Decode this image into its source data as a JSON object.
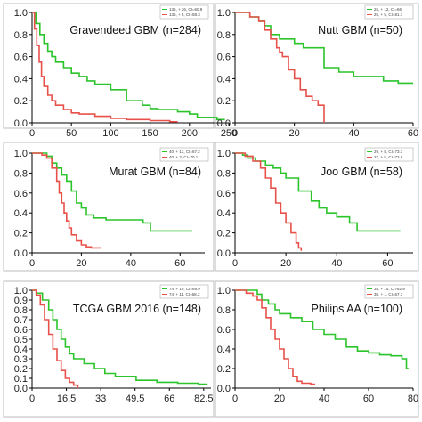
{
  "colors": {
    "green": "#2bc42b",
    "red": "#e8504a",
    "axis": "#000000",
    "frame": "#bbbbbb"
  },
  "chart_data": [
    {
      "type": "line",
      "title": "Gravendeed GBM (n=284)",
      "x_ticks": [
        "0",
        "50",
        "100",
        "150",
        "200",
        "250"
      ],
      "y_ticks": [
        "0.0",
        "0.2",
        "0.4",
        "0.6",
        "0.8",
        "1.0"
      ],
      "xlim": [
        0,
        250
      ],
      "ylim": [
        0,
        1
      ],
      "legend": [
        "135, + 26, CI=60.9",
        "135, + 6, CI=58.3"
      ],
      "series": [
        {
          "color": "green",
          "points": [
            [
              0,
              1.0
            ],
            [
              5,
              0.9
            ],
            [
              10,
              0.8
            ],
            [
              15,
              0.72
            ],
            [
              20,
              0.65
            ],
            [
              25,
              0.6
            ],
            [
              30,
              0.55
            ],
            [
              40,
              0.5
            ],
            [
              50,
              0.45
            ],
            [
              60,
              0.42
            ],
            [
              70,
              0.38
            ],
            [
              80,
              0.35
            ],
            [
              100,
              0.3
            ],
            [
              120,
              0.2
            ],
            [
              140,
              0.16
            ],
            [
              150,
              0.13
            ],
            [
              160,
              0.12
            ],
            [
              175,
              0.12
            ],
            [
              185,
              0.1
            ],
            [
              200,
              0.08
            ],
            [
              210,
              0.05
            ],
            [
              220,
              0.05
            ],
            [
              235,
              0.03
            ],
            [
              245,
              0.03
            ]
          ]
        },
        {
          "color": "red",
          "points": [
            [
              0,
              1.0
            ],
            [
              3,
              0.85
            ],
            [
              6,
              0.7
            ],
            [
              9,
              0.55
            ],
            [
              12,
              0.42
            ],
            [
              15,
              0.33
            ],
            [
              20,
              0.25
            ],
            [
              25,
              0.2
            ],
            [
              30,
              0.16
            ],
            [
              40,
              0.12
            ],
            [
              50,
              0.09
            ],
            [
              60,
              0.08
            ],
            [
              80,
              0.06
            ],
            [
              100,
              0.04
            ],
            [
              120,
              0.03
            ],
            [
              150,
              0.02
            ],
            [
              175,
              0.01
            ],
            [
              185,
              0.01
            ]
          ]
        }
      ]
    },
    {
      "type": "line",
      "title": "Nutt GBM (n=50)",
      "x_ticks": [
        "0",
        "20",
        "40",
        "60"
      ],
      "y_ticks": [
        "0.0",
        "0.2",
        "0.4",
        "0.6",
        "0.8",
        "1.0"
      ],
      "xlim": [
        0,
        60
      ],
      "ylim": [
        0,
        1
      ],
      "legend": [
        "25, + 12, CI=66",
        "25, + 5, CI=81.7"
      ],
      "series": [
        {
          "color": "green",
          "points": [
            [
              0,
              1.0
            ],
            [
              3,
              1.0
            ],
            [
              5,
              0.96
            ],
            [
              8,
              0.92
            ],
            [
              10,
              0.88
            ],
            [
              12,
              0.8
            ],
            [
              15,
              0.76
            ],
            [
              20,
              0.72
            ],
            [
              23,
              0.68
            ],
            [
              28,
              0.68
            ],
            [
              30,
              0.5
            ],
            [
              35,
              0.46
            ],
            [
              38,
              0.46
            ],
            [
              40,
              0.42
            ],
            [
              45,
              0.42
            ],
            [
              50,
              0.38
            ],
            [
              55,
              0.36
            ],
            [
              60,
              0.36
            ]
          ]
        },
        {
          "color": "red",
          "points": [
            [
              0,
              1.0
            ],
            [
              5,
              0.96
            ],
            [
              8,
              0.92
            ],
            [
              10,
              0.84
            ],
            [
              12,
              0.76
            ],
            [
              14,
              0.68
            ],
            [
              15,
              0.64
            ],
            [
              16,
              0.6
            ],
            [
              18,
              0.48
            ],
            [
              20,
              0.4
            ],
            [
              22,
              0.3
            ],
            [
              24,
              0.24
            ],
            [
              26,
              0.2
            ],
            [
              28,
              0.16
            ],
            [
              30,
              0.0
            ]
          ]
        }
      ]
    },
    {
      "type": "line",
      "title": "Murat GBM (n=84)",
      "x_ticks": [
        "0",
        "20",
        "40",
        "60"
      ],
      "y_ticks": [
        "0.0",
        "0.2",
        "0.4",
        "0.6",
        "0.8",
        "1.0"
      ],
      "xlim": [
        0,
        70
      ],
      "ylim": [
        0,
        1
      ],
      "legend": [
        "40, + 13, CI=67.2",
        "40, + 2, CI=70.1"
      ],
      "series": [
        {
          "color": "green",
          "points": [
            [
              0,
              1.0
            ],
            [
              4,
              1.0
            ],
            [
              6,
              0.97
            ],
            [
              8,
              0.9
            ],
            [
              10,
              0.85
            ],
            [
              12,
              0.78
            ],
            [
              14,
              0.72
            ],
            [
              16,
              0.62
            ],
            [
              18,
              0.5
            ],
            [
              20,
              0.45
            ],
            [
              22,
              0.38
            ],
            [
              25,
              0.35
            ],
            [
              30,
              0.33
            ],
            [
              40,
              0.33
            ],
            [
              45,
              0.3
            ],
            [
              48,
              0.22
            ],
            [
              55,
              0.22
            ],
            [
              65,
              0.22
            ]
          ]
        },
        {
          "color": "red",
          "points": [
            [
              0,
              1.0
            ],
            [
              4,
              0.98
            ],
            [
              6,
              0.95
            ],
            [
              8,
              0.85
            ],
            [
              10,
              0.72
            ],
            [
              11,
              0.6
            ],
            [
              12,
              0.5
            ],
            [
              13,
              0.4
            ],
            [
              14,
              0.32
            ],
            [
              15,
              0.25
            ],
            [
              16,
              0.18
            ],
            [
              18,
              0.12
            ],
            [
              20,
              0.08
            ],
            [
              22,
              0.06
            ],
            [
              24,
              0.05
            ],
            [
              28,
              0.05
            ]
          ]
        }
      ]
    },
    {
      "type": "line",
      "title": "Joo GBM (n=58)",
      "x_ticks": [
        "0",
        "20",
        "40",
        "60"
      ],
      "y_ticks": [
        "0.0",
        "0.2",
        "0.4",
        "0.6",
        "0.8",
        "1.0"
      ],
      "xlim": [
        0,
        70
      ],
      "ylim": [
        0,
        1
      ],
      "legend": [
        "29, + 8, CI=73.1",
        "27, + 5, CI=73.6"
      ],
      "series": [
        {
          "color": "green",
          "points": [
            [
              0,
              1.0
            ],
            [
              3,
              0.98
            ],
            [
              5,
              0.95
            ],
            [
              8,
              0.92
            ],
            [
              12,
              0.88
            ],
            [
              15,
              0.85
            ],
            [
              18,
              0.8
            ],
            [
              20,
              0.75
            ],
            [
              25,
              0.62
            ],
            [
              30,
              0.52
            ],
            [
              33,
              0.45
            ],
            [
              36,
              0.4
            ],
            [
              40,
              0.36
            ],
            [
              45,
              0.3
            ],
            [
              48,
              0.22
            ],
            [
              55,
              0.22
            ],
            [
              65,
              0.22
            ]
          ]
        },
        {
          "color": "red",
          "points": [
            [
              0,
              1.0
            ],
            [
              4,
              0.97
            ],
            [
              7,
              0.92
            ],
            [
              10,
              0.85
            ],
            [
              12,
              0.75
            ],
            [
              14,
              0.65
            ],
            [
              16,
              0.5
            ],
            [
              18,
              0.4
            ],
            [
              20,
              0.3
            ],
            [
              22,
              0.2
            ],
            [
              24,
              0.1
            ],
            [
              25,
              0.05
            ],
            [
              26,
              0.02
            ]
          ]
        }
      ]
    },
    {
      "type": "line",
      "title": "TCGA GBM 2016 (n=148)",
      "x_ticks": [
        "0",
        "16.5",
        "33",
        "49.5",
        "66",
        "82.5"
      ],
      "y_ticks": [
        "0.0",
        "0.1",
        "0.2",
        "0.3",
        "0.4",
        "0.5",
        "0.6",
        "0.7",
        "0.8",
        "0.9",
        "1.0"
      ],
      "xlim": [
        0,
        86
      ],
      "ylim": [
        0,
        1
      ],
      "legend": [
        "74, + 19, CI=69.9",
        "74, + 11, CI=68.2"
      ],
      "series": [
        {
          "color": "green",
          "points": [
            [
              0,
              1.0
            ],
            [
              2,
              0.97
            ],
            [
              5,
              0.9
            ],
            [
              8,
              0.8
            ],
            [
              10,
              0.7
            ],
            [
              12,
              0.6
            ],
            [
              14,
              0.5
            ],
            [
              16,
              0.42
            ],
            [
              18,
              0.35
            ],
            [
              20,
              0.3
            ],
            [
              25,
              0.25
            ],
            [
              30,
              0.2
            ],
            [
              35,
              0.15
            ],
            [
              40,
              0.12
            ],
            [
              50,
              0.08
            ],
            [
              60,
              0.06
            ],
            [
              70,
              0.05
            ],
            [
              80,
              0.04
            ],
            [
              84,
              0.04
            ]
          ]
        },
        {
          "color": "red",
          "points": [
            [
              0,
              1.0
            ],
            [
              2,
              0.95
            ],
            [
              4,
              0.85
            ],
            [
              6,
              0.7
            ],
            [
              8,
              0.55
            ],
            [
              10,
              0.4
            ],
            [
              12,
              0.28
            ],
            [
              14,
              0.18
            ],
            [
              16,
              0.1
            ],
            [
              18,
              0.06
            ],
            [
              20,
              0.03
            ],
            [
              22,
              0.0
            ]
          ]
        }
      ]
    },
    {
      "type": "line",
      "title": "Philips AA (n=100)",
      "x_ticks": [
        "0",
        "20",
        "40",
        "60",
        "80"
      ],
      "y_ticks": [
        "0.0",
        "0.2",
        "0.4",
        "0.6",
        "0.8",
        "1.0"
      ],
      "xlim": [
        0,
        80
      ],
      "ylim": [
        0,
        1
      ],
      "legend": [
        "38, + 14, CI=62.9",
        "38, + 1, CI=67.1"
      ],
      "series": [
        {
          "color": "green",
          "points": [
            [
              0,
              1.0
            ],
            [
              5,
              1.0
            ],
            [
              10,
              0.96
            ],
            [
              12,
              0.9
            ],
            [
              15,
              0.86
            ],
            [
              18,
              0.8
            ],
            [
              20,
              0.76
            ],
            [
              25,
              0.72
            ],
            [
              30,
              0.68
            ],
            [
              35,
              0.6
            ],
            [
              40,
              0.55
            ],
            [
              45,
              0.5
            ],
            [
              50,
              0.42
            ],
            [
              55,
              0.38
            ],
            [
              60,
              0.36
            ],
            [
              65,
              0.34
            ],
            [
              70,
              0.33
            ],
            [
              75,
              0.3
            ],
            [
              77,
              0.2
            ],
            [
              78,
              0.2
            ]
          ]
        },
        {
          "color": "red",
          "points": [
            [
              0,
              1.0
            ],
            [
              5,
              0.97
            ],
            [
              8,
              0.94
            ],
            [
              10,
              0.9
            ],
            [
              12,
              0.82
            ],
            [
              14,
              0.72
            ],
            [
              16,
              0.6
            ],
            [
              18,
              0.5
            ],
            [
              20,
              0.4
            ],
            [
              22,
              0.3
            ],
            [
              24,
              0.2
            ],
            [
              26,
              0.12
            ],
            [
              28,
              0.07
            ],
            [
              30,
              0.05
            ],
            [
              34,
              0.04
            ],
            [
              36,
              0.04
            ]
          ]
        }
      ]
    }
  ]
}
